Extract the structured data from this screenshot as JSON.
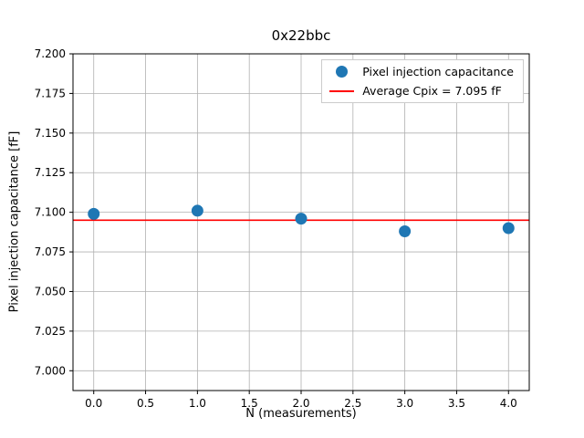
{
  "chart_data": {
    "type": "scatter",
    "title": "0x22bbc",
    "xlabel": "N (measurements)",
    "ylabel": "Pixel injection capacitance [fF]",
    "x": [
      0,
      1,
      2,
      3,
      4
    ],
    "series": [
      {
        "name": "Pixel injection capacitance",
        "values": [
          7.099,
          7.101,
          7.096,
          7.088,
          7.09
        ],
        "color": "#1f77b4",
        "marker": "circle"
      }
    ],
    "average_line": {
      "label": "Average Cpix = 7.095 fF",
      "value": 7.095,
      "color": "#ff0000"
    },
    "xlim": [
      -0.2,
      4.2
    ],
    "ylim": [
      6.9875,
      7.2
    ],
    "xticks": [
      "0.0",
      "0.5",
      "1.0",
      "1.5",
      "2.0",
      "2.5",
      "3.0",
      "3.5",
      "4.0"
    ],
    "yticks": [
      "7.000",
      "7.025",
      "7.050",
      "7.075",
      "7.100",
      "7.125",
      "7.150",
      "7.175",
      "7.200"
    ],
    "grid": true,
    "grid_color": "#b0b0b0",
    "axis_color": "#000000",
    "background": "#ffffff",
    "legend_position": "upper right"
  }
}
